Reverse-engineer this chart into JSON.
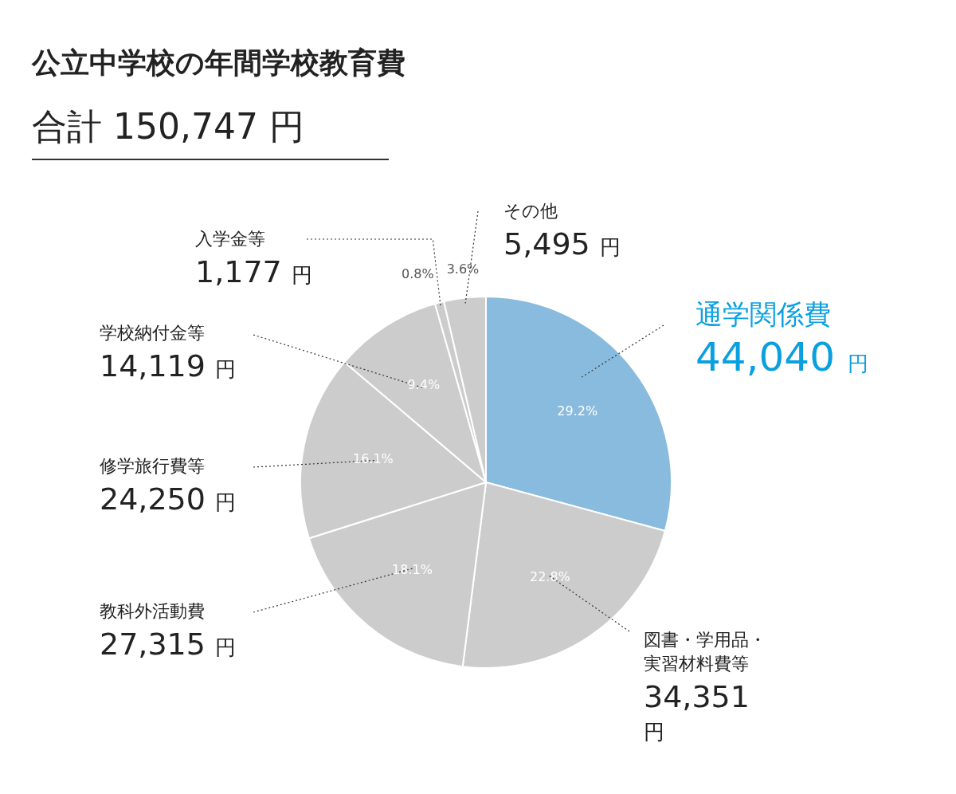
{
  "chart_data": {
    "type": "pie",
    "title": "公立中学校の年間学校教育費",
    "subtitle": "合計 150,747 円",
    "categories": [
      "通学関係費",
      "図書・学用品・実習材料費等",
      "教科外活動費",
      "修学旅行費等",
      "学校納付金等",
      "入学金等",
      "その他"
    ],
    "values": [
      44040,
      34351,
      27315,
      24250,
      14119,
      1177,
      5495
    ],
    "colors": [
      "#88bbdd",
      "#cccccc",
      "#cccccc",
      "#cccccc",
      "#cccccc",
      "#cccccc",
      "#cccccc"
    ],
    "value_labels": [
      "44,040 円",
      "34,351 円",
      "27,315 円",
      "24,250 円",
      "14,119 円",
      "1,177 円",
      "5,495 円"
    ],
    "annotations": [
      {
        "text": "29.2%",
        "x": "通学関係費"
      },
      {
        "text": "22.8%",
        "x": "図書・学用品・実習材料費等"
      },
      {
        "text": "18.1%",
        "x": "教科外活動費"
      },
      {
        "text": "16.1%",
        "x": "修学旅行費等"
      },
      {
        "text": "9.4%",
        "x": "学校納付金等"
      },
      {
        "text": "0.8%",
        "x": "入学金等"
      },
      {
        "text": "3.6%",
        "x": "その他"
      }
    ]
  }
}
